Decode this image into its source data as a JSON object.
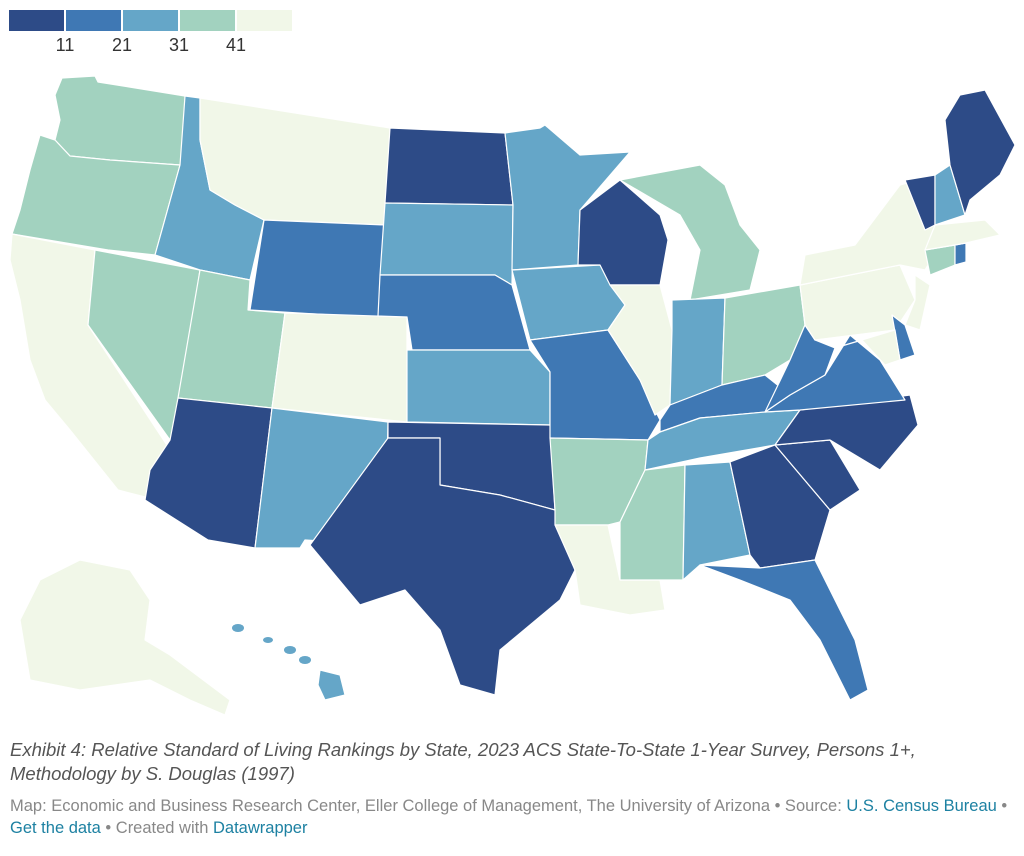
{
  "legend": {
    "colors": [
      "#2d4b87",
      "#3f78b4",
      "#65a6c8",
      "#a2d2bf",
      "#f1f7e8"
    ],
    "ticks": [
      "11",
      "21",
      "31",
      "41"
    ]
  },
  "colors": {
    "bin1": "#2d4b87",
    "bin2": "#3f78b4",
    "bin3": "#65a6c8",
    "bin4": "#a2d2bf",
    "bin5": "#f1f7e8"
  },
  "caption": "Exhibit 4: Relative Standard of Living Rankings by State, 2023 ACS State-To-State 1-Year Survey, Persons 1+, Methodology by S. Douglas (1997)",
  "footer": {
    "map_credit": "Map: Economic and Business Research Center, Eller College of Management, The University of Arizona • Source: ",
    "source_link": "U.S. Census Bureau",
    "sep1": " • ",
    "data_link": "Get the data",
    "sep2": " • Created with ",
    "tool_link": "Datawrapper"
  },
  "states": {
    "WA": "bin4",
    "OR": "bin4",
    "CA": "bin5",
    "NV": "bin4",
    "ID": "bin3",
    "MT": "bin5",
    "WY": "bin2",
    "UT": "bin4",
    "AZ": "bin1",
    "CO": "bin5",
    "NM": "bin3",
    "ND": "bin1",
    "SD": "bin3",
    "NE": "bin2",
    "KS": "bin3",
    "OK": "bin1",
    "TX": "bin1",
    "MN": "bin3",
    "IA": "bin3",
    "MO": "bin2",
    "AR": "bin4",
    "LA": "bin5",
    "WI": "bin1",
    "IL": "bin5",
    "MI": "bin4",
    "IN": "bin3",
    "OH": "bin4",
    "KY": "bin2",
    "TN": "bin3",
    "MS": "bin4",
    "AL": "bin3",
    "GA": "bin1",
    "FL": "bin2",
    "SC": "bin1",
    "NC": "bin1",
    "VA": "bin2",
    "WV": "bin2",
    "PA": "bin5",
    "NY": "bin5",
    "NJ": "bin5",
    "DE": "bin2",
    "MD": "bin5",
    "CT": "bin4",
    "RI": "bin2",
    "MA": "bin5",
    "VT": "bin1",
    "NH": "bin3",
    "ME": "bin1",
    "AK": "bin5",
    "HI": "bin3"
  }
}
